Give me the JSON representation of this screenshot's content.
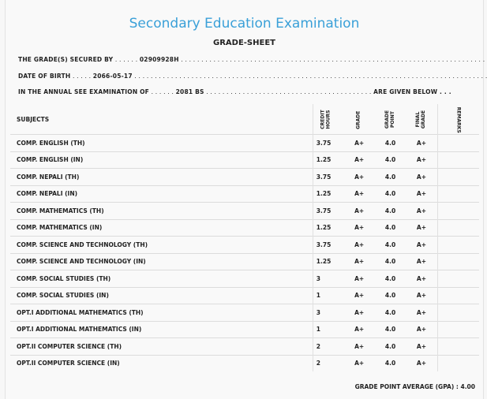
{
  "header": {
    "title": "Secondary Education Examination",
    "subtitle": "GRADE-SHEET"
  },
  "info": {
    "secured_label": "THE GRADE(S) SECURED BY",
    "secured_dots_pre": " . . . . . . ",
    "secured_value": "02909928H",
    "secured_dots_post": " . . . . . . . . . . . . . . . . . . . . . . . . . . . . . . . . . . . . . . . . . . . . . . . . . . . . . . . . . . . . . . . . . . . . . . . . . . . . . . . .",
    "dob_label": "DATE OF BIRTH",
    "dob_dots_pre": " . . . . . ",
    "dob_value": "2066-05-17",
    "dob_dots_post": " . . . . . . . . . . . . . . . . . . . . . . . . . . . . . . . . . . . . . . . . . . . . . . . . . . . . . . . . . . . . . . . . . . . . . . . . . . . . . . . . . . . . . . . . .",
    "exam_label": "IN THE ANNUAL SEE EXAMINATION OF",
    "exam_dots_pre": " . . . . . . ",
    "exam_value": "2081 BS",
    "exam_dots_post": " . . . . . . . . . . . . . . . . . . . . . . . . . . . . . . . . . . . . . . . . . ",
    "exam_suffix": "ARE GIVEN BELOW . . ."
  },
  "table": {
    "headers": {
      "subjects": "SUBJECTS",
      "credit_1": "CREDIT",
      "credit_2": "HOURS",
      "grade": "GRADE",
      "point_1": "GRADE",
      "point_2": "POINT",
      "final_1": "FINAL",
      "final_2": "GRADE",
      "remarks": "REMARKS"
    },
    "rows": [
      {
        "subject": "COMP. ENGLISH (TH)",
        "credit": "3.75",
        "grade": "A+",
        "point": "4.0",
        "final": "A+"
      },
      {
        "subject": "COMP. ENGLISH (IN)",
        "credit": "1.25",
        "grade": "A+",
        "point": "4.0",
        "final": "A+"
      },
      {
        "subject": "COMP. NEPALI (TH)",
        "credit": "3.75",
        "grade": "A+",
        "point": "4.0",
        "final": "A+"
      },
      {
        "subject": "COMP. NEPALI (IN)",
        "credit": "1.25",
        "grade": "A+",
        "point": "4.0",
        "final": "A+"
      },
      {
        "subject": "COMP. MATHEMATICS (TH)",
        "credit": "3.75",
        "grade": "A+",
        "point": "4.0",
        "final": "A+"
      },
      {
        "subject": "COMP. MATHEMATICS (IN)",
        "credit": "1.25",
        "grade": "A+",
        "point": "4.0",
        "final": "A+"
      },
      {
        "subject": "COMP. SCIENCE AND TECHNOLOGY (TH)",
        "credit": "3.75",
        "grade": "A+",
        "point": "4.0",
        "final": "A+"
      },
      {
        "subject": "COMP. SCIENCE AND TECHNOLOGY (IN)",
        "credit": "1.25",
        "grade": "A+",
        "point": "4.0",
        "final": "A+"
      },
      {
        "subject": "COMP. SOCIAL STUDIES (TH)",
        "credit": "3",
        "grade": "A+",
        "point": "4.0",
        "final": "A+"
      },
      {
        "subject": "COMP. SOCIAL STUDIES (IN)",
        "credit": "1",
        "grade": "A+",
        "point": "4.0",
        "final": "A+"
      },
      {
        "subject": "OPT.I ADDITIONAL MATHEMATICS (TH)",
        "credit": "3",
        "grade": "A+",
        "point": "4.0",
        "final": "A+"
      },
      {
        "subject": "OPT.I ADDITIONAL MATHEMATICS (IN)",
        "credit": "1",
        "grade": "A+",
        "point": "4.0",
        "final": "A+"
      },
      {
        "subject": "OPT.II COMPUTER SCIENCE (TH)",
        "credit": "2",
        "grade": "A+",
        "point": "4.0",
        "final": "A+"
      },
      {
        "subject": "OPT.II COMPUTER SCIENCE (IN)",
        "credit": "2",
        "grade": "A+",
        "point": "4.0",
        "final": "A+"
      }
    ]
  },
  "gpa": {
    "label": "GRADE POINT AVERAGE (GPA) :",
    "value": "4.00"
  }
}
